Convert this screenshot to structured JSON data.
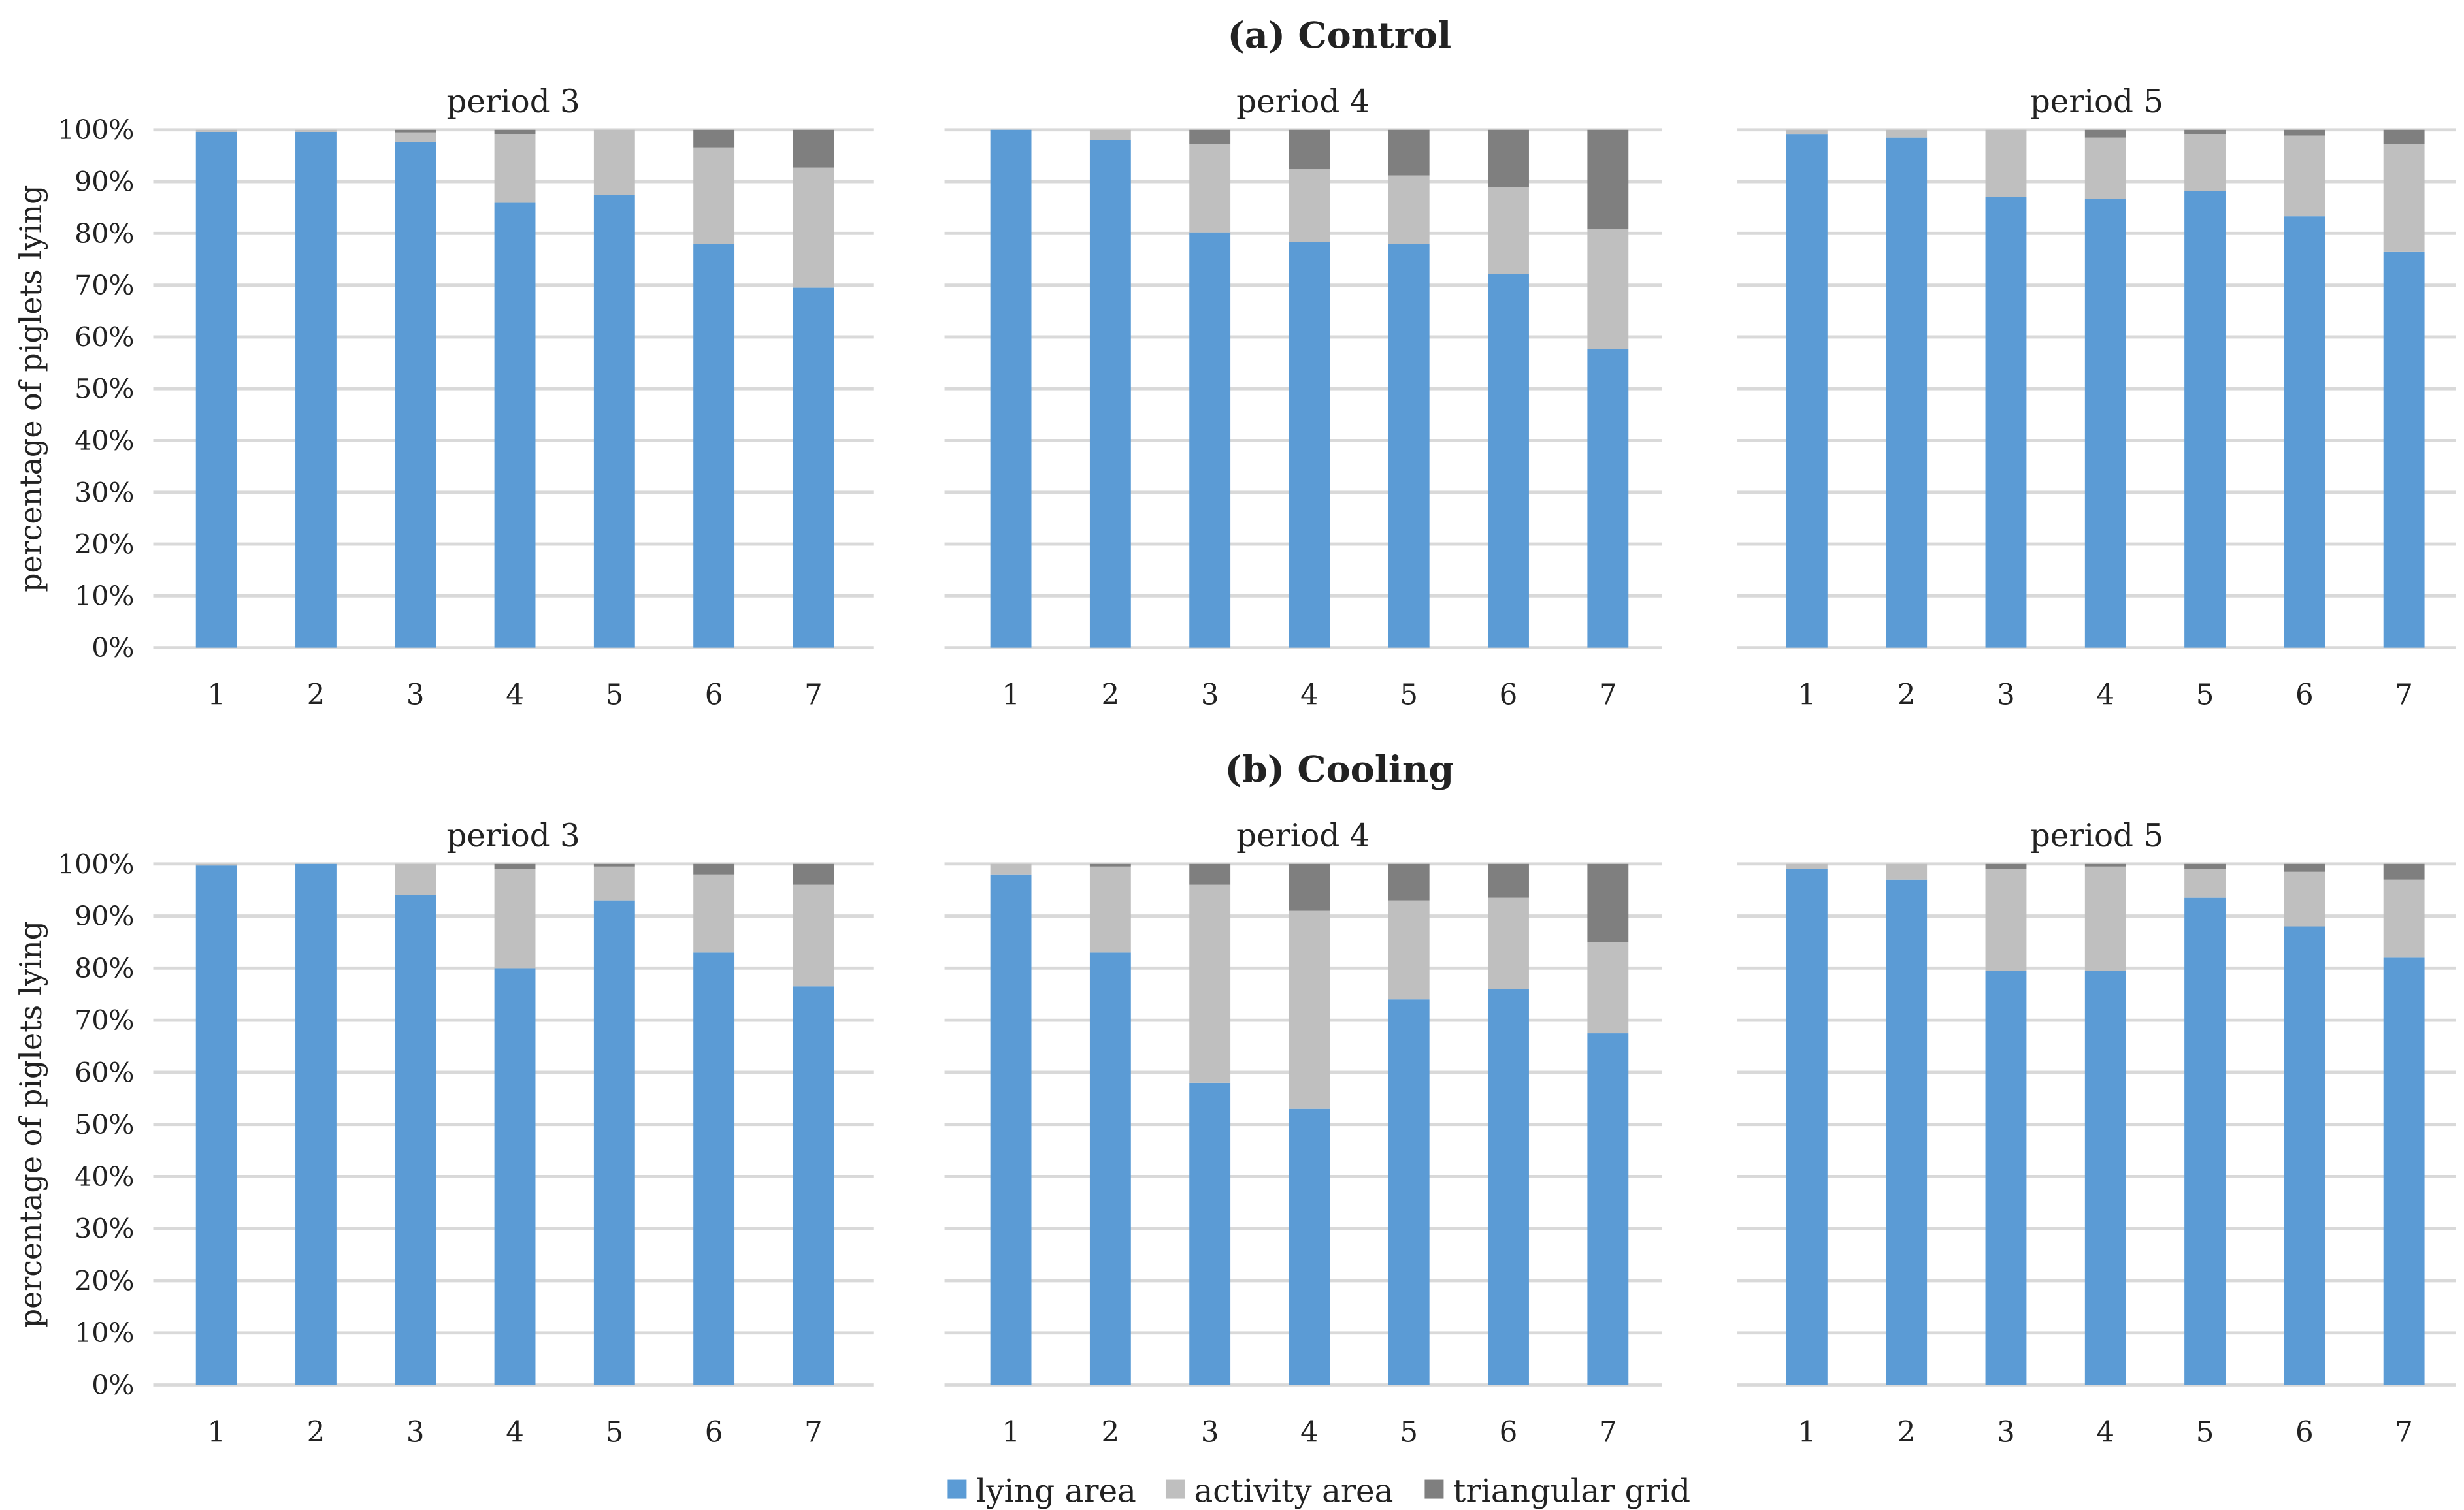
{
  "chart_data": [
    {
      "type": "bar",
      "stacked": true,
      "group_title": "(a) Control",
      "ylabel": "percentage of piglets lying",
      "ylim": [
        0,
        100
      ],
      "yticks": [
        "0%",
        "10%",
        "20%",
        "30%",
        "40%",
        "50%",
        "60%",
        "70%",
        "80%",
        "90%",
        "100%"
      ],
      "categories": [
        "1",
        "2",
        "3",
        "4",
        "5",
        "6",
        "7"
      ],
      "panels": [
        {
          "title": "period 3",
          "series": [
            {
              "name": "lying area",
              "values": [
                99.6,
                99.6,
                97.7,
                85.9,
                87.4,
                77.9,
                69.5
              ]
            },
            {
              "name": "activity area",
              "values": [
                0.4,
                0.4,
                1.8,
                13.3,
                12.6,
                18.7,
                23.2
              ]
            },
            {
              "name": "triangular grid",
              "values": [
                0,
                0,
                0.5,
                0.8,
                0,
                3.4,
                7.3
              ]
            }
          ]
        },
        {
          "title": "period 4",
          "series": [
            {
              "name": "lying area",
              "values": [
                100,
                98.0,
                80.2,
                78.3,
                77.9,
                72.2,
                57.7
              ]
            },
            {
              "name": "activity area",
              "values": [
                0,
                2.0,
                17.1,
                14.1,
                13.3,
                16.7,
                23.2
              ]
            },
            {
              "name": "triangular grid",
              "values": [
                0,
                0,
                2.7,
                7.6,
                8.8,
                11.1,
                19.1
              ]
            }
          ]
        },
        {
          "title": "period 5",
          "series": [
            {
              "name": "lying area",
              "values": [
                99.2,
                98.5,
                87.1,
                86.7,
                88.2,
                83.3,
                76.4
              ]
            },
            {
              "name": "activity area",
              "values": [
                0.8,
                1.5,
                12.9,
                11.8,
                11.0,
                15.6,
                20.9
              ]
            },
            {
              "name": "triangular grid",
              "values": [
                0,
                0,
                0,
                1.5,
                0.8,
                1.1,
                2.7
              ]
            }
          ]
        }
      ]
    },
    {
      "type": "bar",
      "stacked": true,
      "group_title": "(b) Cooling",
      "ylabel": "percentage of piglets lying",
      "ylim": [
        0,
        100
      ],
      "yticks": [
        "0%",
        "10%",
        "20%",
        "30%",
        "40%",
        "50%",
        "60%",
        "70%",
        "80%",
        "90%",
        "100%"
      ],
      "categories": [
        "1",
        "2",
        "3",
        "4",
        "5",
        "6",
        "7"
      ],
      "panels": [
        {
          "title": "period 3",
          "series": [
            {
              "name": "lying area",
              "values": [
                99.7,
                100,
                94,
                80,
                93,
                83,
                76.5
              ]
            },
            {
              "name": "activity area",
              "values": [
                0.3,
                0,
                6,
                19,
                6.5,
                15,
                19.5
              ]
            },
            {
              "name": "triangular grid",
              "values": [
                0,
                0,
                0,
                1,
                0.5,
                2,
                4
              ]
            }
          ]
        },
        {
          "title": "period 4",
          "series": [
            {
              "name": "lying area",
              "values": [
                98,
                83,
                58,
                53,
                74,
                76,
                67.5
              ]
            },
            {
              "name": "activity area",
              "values": [
                2,
                16.5,
                38,
                38,
                19,
                17.5,
                17.5
              ]
            },
            {
              "name": "triangular grid",
              "values": [
                0,
                0.5,
                4,
                9,
                7,
                6.5,
                15
              ]
            }
          ]
        },
        {
          "title": "period 5",
          "series": [
            {
              "name": "lying area",
              "values": [
                99,
                97,
                79.5,
                79.5,
                93.5,
                88,
                82
              ]
            },
            {
              "name": "activity area",
              "values": [
                1,
                3,
                19.5,
                20,
                5.5,
                10.5,
                15
              ]
            },
            {
              "name": "triangular grid",
              "values": [
                0,
                0,
                1,
                0.5,
                1,
                1.5,
                3
              ]
            }
          ]
        }
      ]
    }
  ],
  "legend": {
    "placement": "bottom-center",
    "items": [
      {
        "label": "lying area",
        "color": "#5b9bd5"
      },
      {
        "label": "activity area",
        "color": "#bfbfbf"
      },
      {
        "label": "triangular grid",
        "color": "#7f7f7f"
      }
    ]
  },
  "colors": {
    "grid": "#d9d9d9",
    "text": "#222222"
  }
}
